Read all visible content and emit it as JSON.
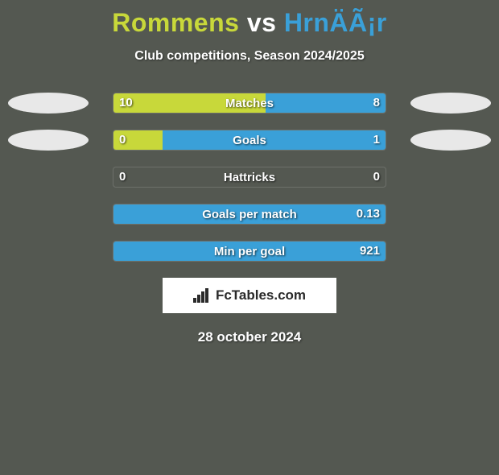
{
  "title": {
    "player1": "Rommens",
    "vs": "vs",
    "player2": "HrnÄÃ¡r",
    "color_p1": "#c8d83a",
    "color_vs": "#ffffff",
    "color_p2": "#3aa0d8"
  },
  "subtitle": "Club competitions, Season 2024/2025",
  "colors": {
    "left_fill": "#c8d83a",
    "right_fill": "#3aa0d8",
    "ellipse_left": "#e8e8e8",
    "ellipse_right": "#e8e8e8",
    "ellipse_left2": "#e8e8e8",
    "ellipse_right2": "#e8e8e8"
  },
  "rows": [
    {
      "label": "Matches",
      "left_val": "10",
      "right_val": "8",
      "left_pct": 56,
      "right_pct": 44,
      "show_left_ellipse": true,
      "show_right_ellipse": true
    },
    {
      "label": "Goals",
      "left_val": "0",
      "right_val": "1",
      "left_pct": 18,
      "right_pct": 82,
      "show_left_ellipse": true,
      "show_right_ellipse": true
    },
    {
      "label": "Hattricks",
      "left_val": "0",
      "right_val": "0",
      "left_pct": 0,
      "right_pct": 0,
      "show_left_ellipse": false,
      "show_right_ellipse": false
    },
    {
      "label": "Goals per match",
      "left_val": "",
      "right_val": "0.13",
      "left_pct": 0,
      "right_pct": 100,
      "show_left_ellipse": false,
      "show_right_ellipse": false
    },
    {
      "label": "Min per goal",
      "left_val": "",
      "right_val": "921",
      "left_pct": 0,
      "right_pct": 100,
      "show_left_ellipse": false,
      "show_right_ellipse": false
    }
  ],
  "brand": "FcTables.com",
  "date": "28 october 2024",
  "bar": {
    "total_width": 340
  }
}
